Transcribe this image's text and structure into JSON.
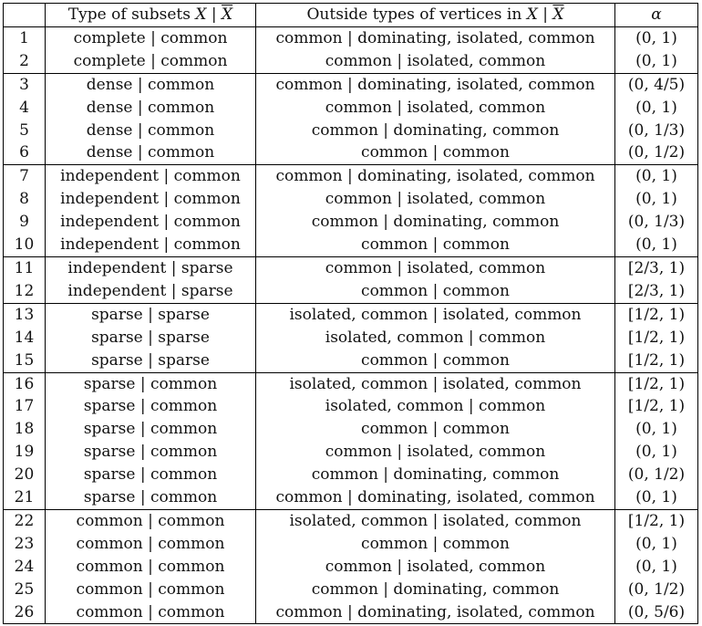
{
  "headers": {
    "num": "",
    "type_prefix": "Type of subsets ",
    "outside_prefix": "Outside types of vertices in ",
    "x": "X",
    "sep": " | ",
    "xbar": "X",
    "alpha": "α"
  },
  "rows": [
    {
      "n": "1",
      "type": "complete | common",
      "outside": "common | dominating, isolated, common",
      "alpha": "(0, 1)",
      "group_start": true
    },
    {
      "n": "2",
      "type": "complete | common",
      "outside": "common | isolated, common",
      "alpha": "(0, 1)",
      "group_start": false
    },
    {
      "n": "3",
      "type": "dense | common",
      "outside": "common | dominating, isolated, common",
      "alpha": "(0, 4/5)",
      "group_start": true
    },
    {
      "n": "4",
      "type": "dense | common",
      "outside": "common | isolated, common",
      "alpha": "(0, 1)",
      "group_start": false
    },
    {
      "n": "5",
      "type": "dense | common",
      "outside": "common | dominating, common",
      "alpha": "(0, 1/3)",
      "group_start": false
    },
    {
      "n": "6",
      "type": "dense | common",
      "outside": "common | common",
      "alpha": "(0, 1/2)",
      "group_start": false
    },
    {
      "n": "7",
      "type": "independent | common",
      "outside": "common | dominating, isolated, common",
      "alpha": "(0, 1)",
      "group_start": true
    },
    {
      "n": "8",
      "type": "independent | common",
      "outside": "common | isolated, common",
      "alpha": "(0, 1)",
      "group_start": false
    },
    {
      "n": "9",
      "type": "independent | common",
      "outside": "common | dominating, common",
      "alpha": "(0, 1/3)",
      "group_start": false
    },
    {
      "n": "10",
      "type": "independent | common",
      "outside": "common | common",
      "alpha": "(0, 1)",
      "group_start": false
    },
    {
      "n": "11",
      "type": "independent | sparse",
      "outside": "common | isolated, common",
      "alpha": "[2/3, 1)",
      "group_start": true
    },
    {
      "n": "12",
      "type": "independent | sparse",
      "outside": "common | common",
      "alpha": "[2/3, 1)",
      "group_start": false
    },
    {
      "n": "13",
      "type": "sparse | sparse",
      "outside": "isolated, common | isolated, common",
      "alpha": "[1/2, 1)",
      "group_start": true
    },
    {
      "n": "14",
      "type": "sparse | sparse",
      "outside": "isolated, common | common",
      "alpha": "[1/2, 1)",
      "group_start": false
    },
    {
      "n": "15",
      "type": "sparse | sparse",
      "outside": "common | common",
      "alpha": "[1/2, 1)",
      "group_start": false
    },
    {
      "n": "16",
      "type": "sparse | common",
      "outside": "isolated, common | isolated, common",
      "alpha": "[1/2, 1)",
      "group_start": true
    },
    {
      "n": "17",
      "type": "sparse | common",
      "outside": "isolated, common | common",
      "alpha": "[1/2, 1)",
      "group_start": false
    },
    {
      "n": "18",
      "type": "sparse | common",
      "outside": "common | common",
      "alpha": "(0, 1)",
      "group_start": false
    },
    {
      "n": "19",
      "type": "sparse | common",
      "outside": "common | isolated, common",
      "alpha": "(0, 1)",
      "group_start": false
    },
    {
      "n": "20",
      "type": "sparse | common",
      "outside": "common | dominating, common",
      "alpha": "(0, 1/2)",
      "group_start": false
    },
    {
      "n": "21",
      "type": "sparse | common",
      "outside": "common | dominating, isolated, common",
      "alpha": "(0, 1)",
      "group_start": false
    },
    {
      "n": "22",
      "type": "common | common",
      "outside": "isolated, common | isolated, common",
      "alpha": "[1/2, 1)",
      "group_start": true
    },
    {
      "n": "23",
      "type": "common | common",
      "outside": "common | common",
      "alpha": "(0, 1)",
      "group_start": false
    },
    {
      "n": "24",
      "type": "common | common",
      "outside": "common | isolated, common",
      "alpha": "(0, 1)",
      "group_start": false
    },
    {
      "n": "25",
      "type": "common | common",
      "outside": "common | dominating, common",
      "alpha": "(0, 1/2)",
      "group_start": false
    },
    {
      "n": "26",
      "type": "common | common",
      "outside": "common | dominating, isolated, common",
      "alpha": "(0, 5/6)",
      "group_start": false
    }
  ]
}
